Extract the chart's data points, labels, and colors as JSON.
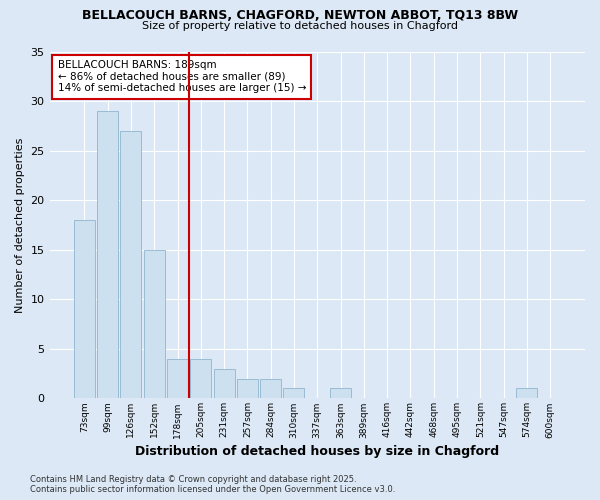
{
  "title": "BELLACOUCH BARNS, CHAGFORD, NEWTON ABBOT, TQ13 8BW",
  "subtitle": "Size of property relative to detached houses in Chagford",
  "xlabel": "Distribution of detached houses by size in Chagford",
  "ylabel": "Number of detached properties",
  "categories": [
    "73sqm",
    "99sqm",
    "126sqm",
    "152sqm",
    "178sqm",
    "205sqm",
    "231sqm",
    "257sqm",
    "284sqm",
    "310sqm",
    "337sqm",
    "363sqm",
    "389sqm",
    "416sqm",
    "442sqm",
    "468sqm",
    "495sqm",
    "521sqm",
    "547sqm",
    "574sqm",
    "600sqm"
  ],
  "values": [
    18,
    29,
    27,
    15,
    4,
    4,
    3,
    2,
    2,
    1,
    0,
    1,
    0,
    0,
    0,
    0,
    0,
    0,
    0,
    1,
    0
  ],
  "bar_color": "#cce0f0",
  "bar_edge_color": "#9abcd4",
  "property_line_x": 4.5,
  "annotation_text": "BELLACOUCH BARNS: 189sqm\n← 86% of detached houses are smaller (89)\n14% of semi-detached houses are larger (15) →",
  "annotation_box_color": "#ffffff",
  "annotation_box_edge": "#cc0000",
  "vline_color": "#cc0000",
  "ylim": [
    0,
    35
  ],
  "yticks": [
    0,
    5,
    10,
    15,
    20,
    25,
    30,
    35
  ],
  "bg_color": "#dce8f5",
  "grid_color": "#ffffff",
  "footer": "Contains HM Land Registry data © Crown copyright and database right 2025.\nContains public sector information licensed under the Open Government Licence v3.0."
}
